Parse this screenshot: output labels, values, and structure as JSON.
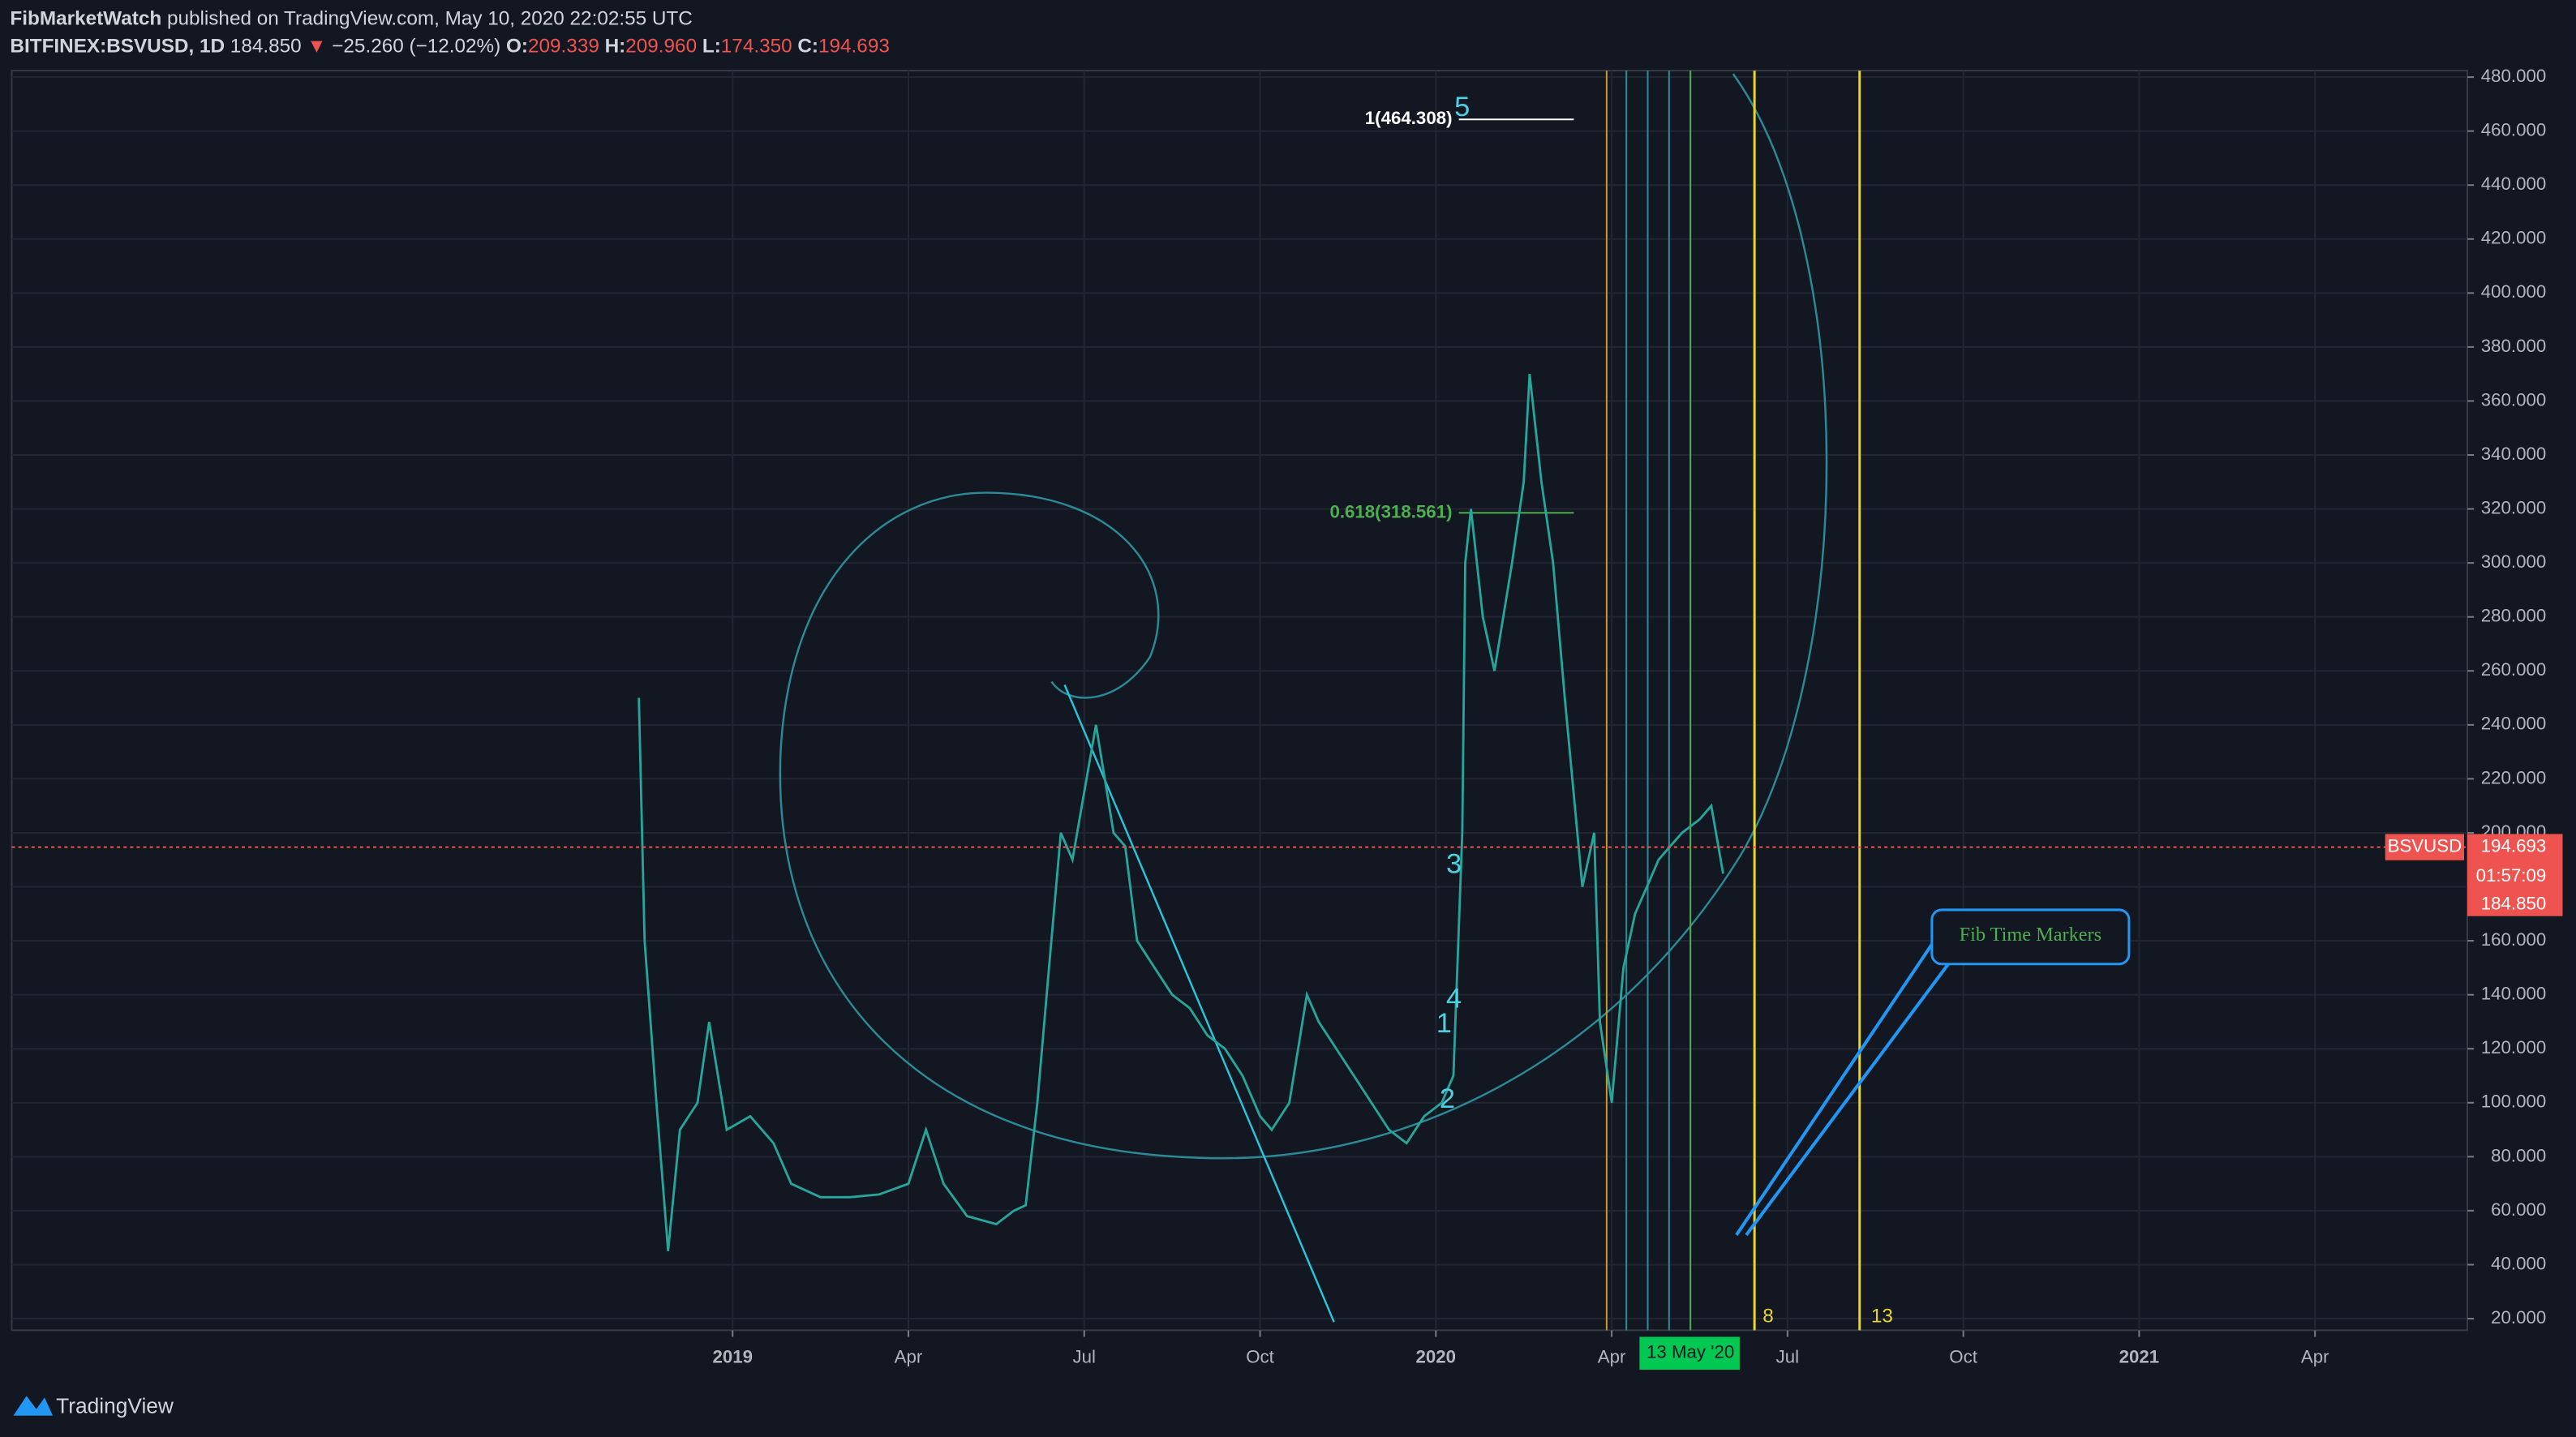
{
  "header": {
    "author": "FibMarketWatch",
    "published": "published on TradingView.com, May 10, 2020 22:02:55 UTC",
    "symbol": "BITFINEX:BSVUSD, 1D",
    "price": "184.850",
    "arrow": "▼",
    "change": "−25.260 (−12.02%)",
    "open_label": "O:",
    "open": "209.339",
    "high_label": "H:",
    "high": "209.960",
    "low_label": "L:",
    "low": "174.350",
    "close_label": "C:",
    "close": "194.693"
  },
  "chart_data": {
    "type": "line",
    "x": [
      -1.6,
      -1.5,
      -1.3,
      -1.1,
      -0.9,
      -0.6,
      -0.4,
      -0.1,
      0.3,
      0.7,
      1.0,
      1.5,
      2.0,
      2.5,
      3.0,
      3.3,
      3.6,
      4.0,
      4.5,
      4.8,
      5.0,
      5.2,
      5.4,
      5.6,
      5.8,
      6.0,
      6.2,
      6.5,
      6.7,
      6.9,
      7.2,
      7.5,
      7.8,
      8.1,
      8.4,
      8.7,
      9.0,
      9.2,
      9.5,
      9.8,
      10.0,
      10.3,
      10.6,
      10.9,
      11.2,
      11.5,
      11.8,
      12.1,
      12.3,
      12.4,
      12.45,
      12.5,
      12.6,
      12.8,
      13.0,
      13.3,
      13.5,
      13.6,
      13.8,
      14.0,
      14.2,
      14.5,
      14.7,
      14.8,
      15.0,
      15.2,
      15.4,
      15.6,
      15.8,
      16.0,
      16.2,
      16.5,
      16.7,
      16.9
    ],
    "series": [
      {
        "name": "BSVUSD",
        "color": "#26a69a",
        "values": [
          250,
          160,
          100,
          45,
          90,
          100,
          130,
          90,
          95,
          85,
          70,
          65,
          65,
          66,
          70,
          90,
          70,
          58,
          55,
          60,
          62,
          100,
          150,
          200,
          190,
          215,
          240,
          200,
          195,
          160,
          150,
          140,
          135,
          125,
          120,
          110,
          95,
          90,
          100,
          140,
          130,
          120,
          110,
          100,
          90,
          85,
          95,
          100,
          110,
          170,
          200,
          300,
          320,
          280,
          260,
          300,
          330,
          370,
          330,
          300,
          250,
          180,
          200,
          130,
          100,
          150,
          170,
          180,
          190,
          195,
          200,
          205,
          210,
          184.85
        ]
      }
    ],
    "xlim": [
      -12.3,
      29.6
    ],
    "xticks": [
      {
        "value": 0,
        "label": "2019"
      },
      {
        "value": 3,
        "label": "Apr"
      },
      {
        "value": 6,
        "label": "Jul"
      },
      {
        "value": 9,
        "label": "Oct"
      },
      {
        "value": 12,
        "label": "2020"
      },
      {
        "value": 15,
        "label": "Apr"
      },
      {
        "value": 18,
        "label": "Jul"
      },
      {
        "value": 21,
        "label": "Oct"
      },
      {
        "value": 24,
        "label": "2021"
      },
      {
        "value": 27,
        "label": "Apr"
      }
    ],
    "ylim": [
      15.7,
      482.4
    ],
    "yticks": [
      {
        "value": 20,
        "label": "20.000"
      },
      {
        "value": 40,
        "label": "40.000"
      },
      {
        "value": 60,
        "label": "60.000"
      },
      {
        "value": 80,
        "label": "80.000"
      },
      {
        "value": 100,
        "label": "100.000"
      },
      {
        "value": 120,
        "label": "120.000"
      },
      {
        "value": 140,
        "label": "140.000"
      },
      {
        "value": 160,
        "label": "160.000"
      },
      {
        "value": 180,
        "label": "180.000"
      },
      {
        "value": 200,
        "label": "200.000"
      },
      {
        "value": 220,
        "label": "220.000"
      },
      {
        "value": 240,
        "label": "240.000"
      },
      {
        "value": 260,
        "label": "260.000"
      },
      {
        "value": 280,
        "label": "280.000"
      },
      {
        "value": 300,
        "label": "300.000"
      },
      {
        "value": 320,
        "label": "320.000"
      },
      {
        "value": 340,
        "label": "340.000"
      },
      {
        "value": 360,
        "label": "360.000"
      },
      {
        "value": 380,
        "label": "380.000"
      },
      {
        "value": 400,
        "label": "400.000"
      },
      {
        "value": 420,
        "label": "420.000"
      },
      {
        "value": 440,
        "label": "440.000"
      },
      {
        "value": 460,
        "label": "460.000"
      },
      {
        "value": 480,
        "label": "480.000"
      }
    ],
    "grid": true,
    "fib_levels": [
      {
        "value": 464.308,
        "label": "1(464.308)",
        "color": "#ffffff"
      },
      {
        "value": 318.561,
        "label": "0.618(318.561)",
        "color": "#4caf50"
      }
    ],
    "price_tags": [
      {
        "value": 194.693,
        "label": "194.693"
      },
      {
        "value": 184.85,
        "label": "184.850"
      }
    ],
    "countdown": "01:57:09",
    "wave_labels": [
      "1",
      "2",
      "3",
      "4",
      "5"
    ],
    "time_markers": [
      "8",
      "13"
    ],
    "date_tag": "13 May '20",
    "annotation": "Fib Time Markers"
  },
  "footer": {
    "brand": "TradingView"
  }
}
